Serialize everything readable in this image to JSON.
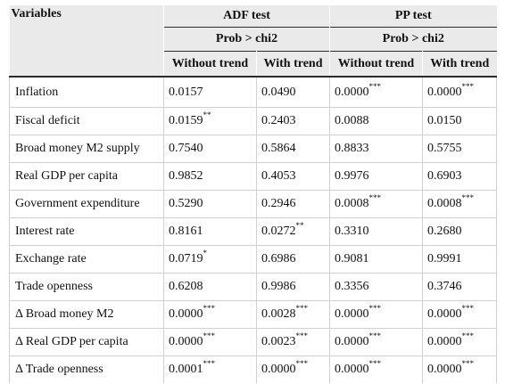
{
  "header": {
    "variables": "Variables",
    "adf_test": "ADF test",
    "pp_test": "PP test",
    "adf_prob": "Prob > chi2",
    "pp_prob": "Prob > chi2",
    "adf_without_trend": "Without trend",
    "adf_with_trend": "With trend",
    "pp_without_trend": "Without trend",
    "pp_with_trend": "With trend"
  },
  "rows": [
    {
      "variable": "Inflation",
      "adf_without": "0.0157",
      "adf_without_sig": "",
      "adf_with": "0.0490",
      "adf_with_sig": "",
      "pp_without": "0.0000",
      "pp_without_sig": "***",
      "pp_with": "0.0000",
      "pp_with_sig": "***"
    },
    {
      "variable": "Fiscal deficit",
      "adf_without": "0.0159",
      "adf_without_sig": "**",
      "adf_with": "0.2403",
      "adf_with_sig": "",
      "pp_without": "0.0088",
      "pp_without_sig": "",
      "pp_with": "0.0150",
      "pp_with_sig": ""
    },
    {
      "variable": "Broad money M2 supply",
      "adf_without": "0.7540",
      "adf_without_sig": "",
      "adf_with": "0.5864",
      "adf_with_sig": "",
      "pp_without": "0.8833",
      "pp_without_sig": "",
      "pp_with": "0.5755",
      "pp_with_sig": ""
    },
    {
      "variable": "Real GDP per capita",
      "adf_without": "0.9852",
      "adf_without_sig": "",
      "adf_with": "0.4053",
      "adf_with_sig": "",
      "pp_without": "0.9976",
      "pp_without_sig": "",
      "pp_with": "0.6903",
      "pp_with_sig": ""
    },
    {
      "variable": "Government expenditure",
      "adf_without": "0.5290",
      "adf_without_sig": "",
      "adf_with": "0.2946",
      "adf_with_sig": "",
      "pp_without": "0.0008",
      "pp_without_sig": "***",
      "pp_with": "0.0008",
      "pp_with_sig": "***"
    },
    {
      "variable": "Interest rate",
      "adf_without": "0.8161",
      "adf_without_sig": "",
      "adf_with": "0.0272",
      "adf_with_sig": "**",
      "pp_without": "0.3310",
      "pp_without_sig": "",
      "pp_with": "0.2680",
      "pp_with_sig": ""
    },
    {
      "variable": "Exchange rate",
      "adf_without": "0.0719",
      "adf_without_sig": "*",
      "adf_with": "0.6986",
      "adf_with_sig": "",
      "pp_without": "0.9081",
      "pp_without_sig": "",
      "pp_with": "0.9991",
      "pp_with_sig": ""
    },
    {
      "variable": "Trade openness",
      "adf_without": "0.6208",
      "adf_without_sig": "",
      "adf_with": "0.9986",
      "adf_with_sig": "",
      "pp_without": "0.3356",
      "pp_without_sig": "",
      "pp_with": "0.3746",
      "pp_with_sig": ""
    },
    {
      "variable": "Δ Broad money M2",
      "adf_without": "0.0000",
      "adf_without_sig": "***",
      "adf_with": "0.0028",
      "adf_with_sig": "***",
      "pp_without": "0.0000",
      "pp_without_sig": "***",
      "pp_with": "0.0000",
      "pp_with_sig": "***"
    },
    {
      "variable": "Δ Real GDP per capita",
      "adf_without": "0.0000",
      "adf_without_sig": "***",
      "adf_with": "0.0023",
      "adf_with_sig": "***",
      "pp_without": "0.0000",
      "pp_without_sig": "***",
      "pp_with": "0.0000",
      "pp_with_sig": "***"
    },
    {
      "variable": "Δ Trade openness",
      "adf_without": "0.0001",
      "adf_without_sig": "***",
      "adf_with": "0.0000",
      "adf_with_sig": "***",
      "pp_without": "0.0000",
      "pp_without_sig": "***",
      "pp_with": "0.0000",
      "pp_with_sig": "***"
    }
  ]
}
